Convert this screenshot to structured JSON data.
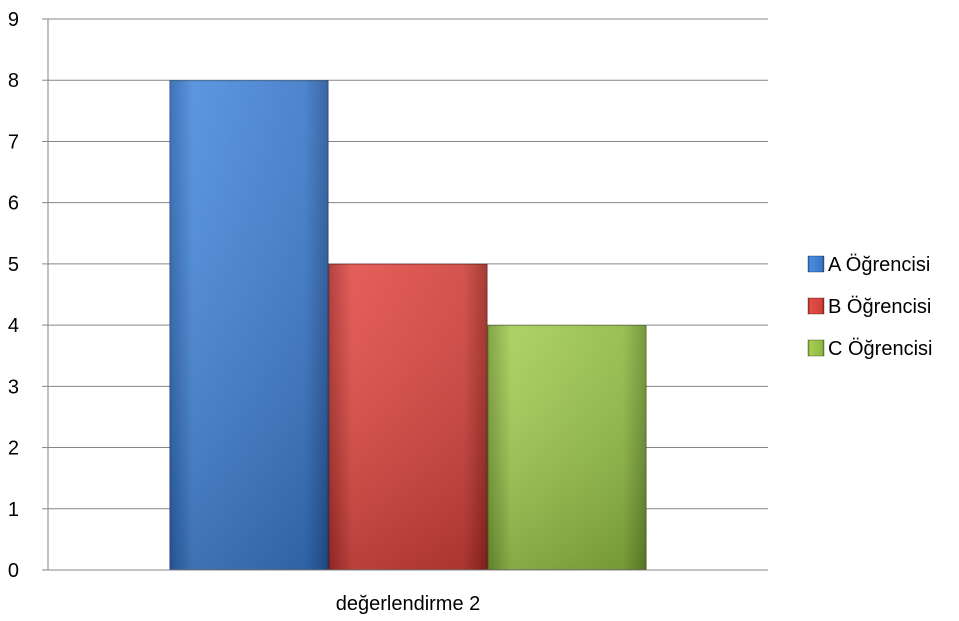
{
  "chart_data": {
    "type": "bar",
    "categories": [
      "değerlendirme 2"
    ],
    "series": [
      {
        "name": "A Öğrencisi",
        "values": [
          8
        ],
        "color": "#3E7FD2"
      },
      {
        "name": "B Öğrencisi",
        "values": [
          5
        ],
        "color": "#D9423D"
      },
      {
        "name": "C Öğrencisi",
        "values": [
          4
        ],
        "color": "#98C24A"
      }
    ],
    "yticks": [
      "0",
      "1",
      "2",
      "3",
      "4",
      "5",
      "6",
      "7",
      "8",
      "9"
    ],
    "ylim": [
      0,
      9
    ],
    "grid": true,
    "legend_position": "right"
  }
}
